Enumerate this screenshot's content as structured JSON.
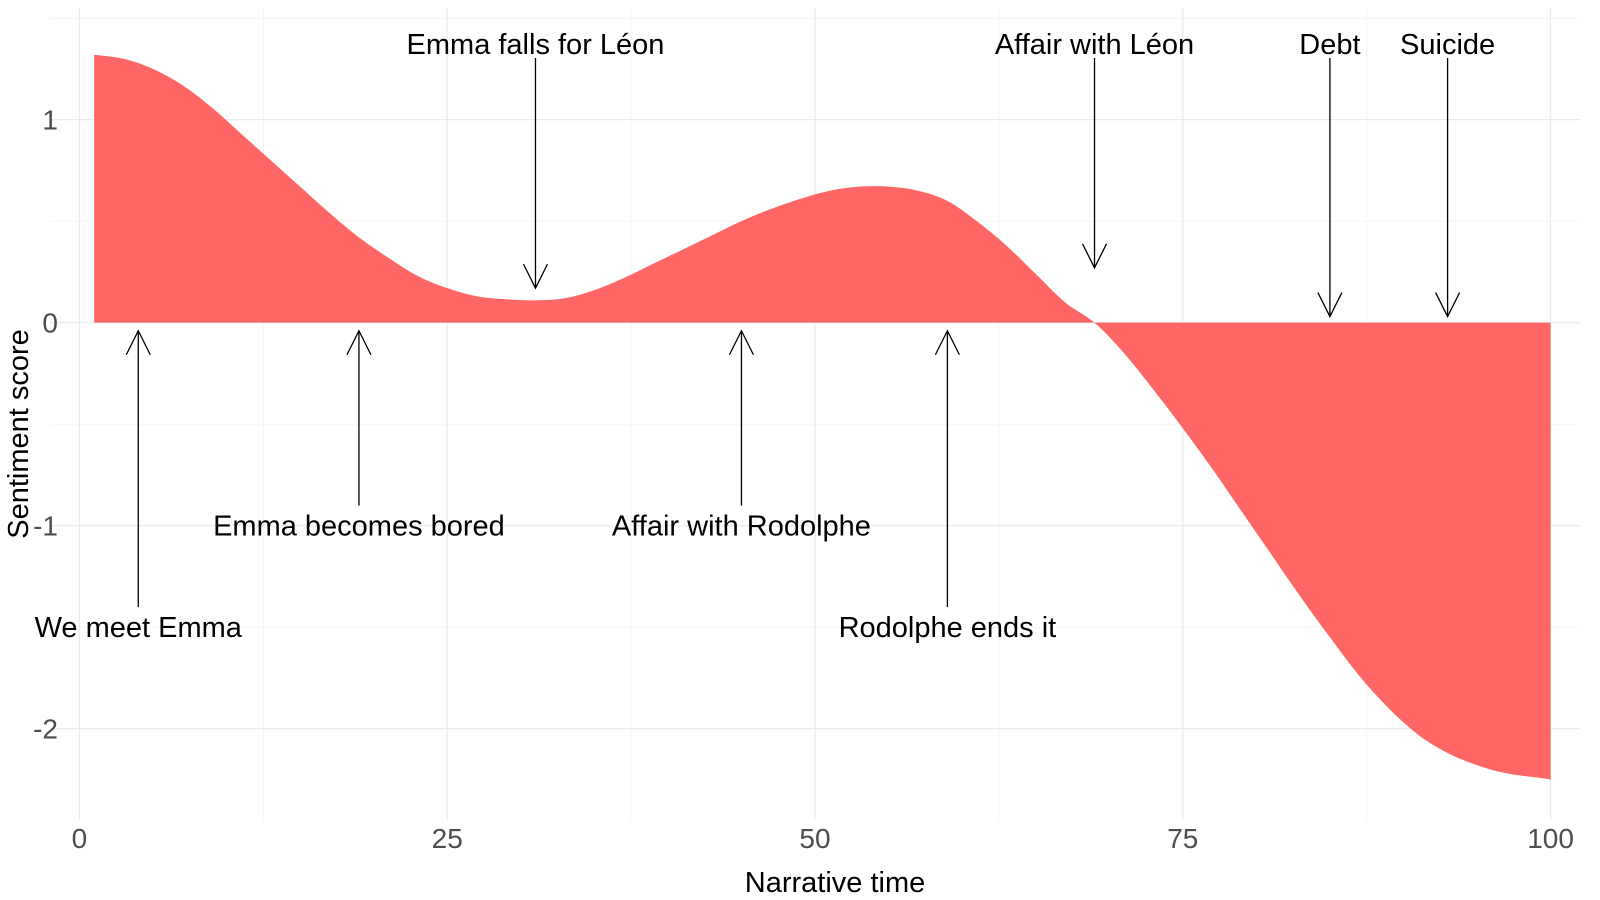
{
  "chart_data": {
    "type": "area",
    "title": "",
    "xlabel": "Narrative time",
    "ylabel": "Sentiment score",
    "xlim": [
      -2,
      102
    ],
    "ylim": [
      -2.45,
      1.55
    ],
    "x_ticks": [
      0,
      25,
      50,
      75,
      100
    ],
    "x_tick_labels": [
      "0",
      "25",
      "50",
      "75",
      "100"
    ],
    "y_ticks": [
      1,
      0,
      -1,
      -2
    ],
    "y_tick_labels": [
      "1",
      "0",
      "-1",
      "-2"
    ],
    "grid": true,
    "legend": "none",
    "fill_color": "#ff6666",
    "series": [
      {
        "x": [
          1,
          3,
          5,
          7,
          9,
          11,
          13,
          15,
          17,
          19,
          21,
          23,
          25,
          27,
          29,
          31,
          33,
          35,
          37,
          39,
          41,
          43,
          45,
          47,
          49,
          51,
          53,
          55,
          57,
          59,
          61,
          63,
          65,
          67,
          69,
          71,
          73,
          75,
          77,
          79,
          81,
          83,
          85,
          87,
          89,
          91,
          93,
          95,
          97,
          99,
          100
        ],
        "y": [
          1.32,
          1.3,
          1.25,
          1.17,
          1.06,
          0.93,
          0.8,
          0.67,
          0.54,
          0.42,
          0.32,
          0.23,
          0.17,
          0.13,
          0.115,
          0.11,
          0.12,
          0.16,
          0.22,
          0.29,
          0.36,
          0.43,
          0.5,
          0.56,
          0.61,
          0.65,
          0.67,
          0.67,
          0.65,
          0.6,
          0.5,
          0.38,
          0.24,
          0.1,
          0.0,
          -0.15,
          -0.33,
          -0.52,
          -0.72,
          -0.93,
          -1.14,
          -1.35,
          -1.55,
          -1.74,
          -1.9,
          -2.03,
          -2.12,
          -2.18,
          -2.22,
          -2.24,
          -2.25
        ]
      }
    ],
    "annotations": [
      {
        "label": "Emma falls for Léon",
        "x": 31,
        "y": 0.17,
        "placement": "above"
      },
      {
        "label": "Affair with Léon",
        "x": 69,
        "y": 0.27,
        "placement": "above"
      },
      {
        "label": "Debt",
        "x": 85,
        "y": 0.03,
        "placement": "above"
      },
      {
        "label": "Suicide",
        "x": 93,
        "y": 0.03,
        "placement": "above"
      },
      {
        "label": "We meet Emma",
        "x": 4,
        "y": -0.04,
        "placement": "below",
        "text_y": -1.5
      },
      {
        "label": "Emma becomes bored",
        "x": 19,
        "y": -0.04,
        "placement": "below",
        "text_y": -1.0
      },
      {
        "label": "Affair with Rodolphe",
        "x": 45,
        "y": -0.04,
        "placement": "below",
        "text_y": -1.0
      },
      {
        "label": "Rodolphe ends it",
        "x": 59,
        "y": -0.04,
        "placement": "below",
        "text_y": -1.5
      }
    ]
  }
}
